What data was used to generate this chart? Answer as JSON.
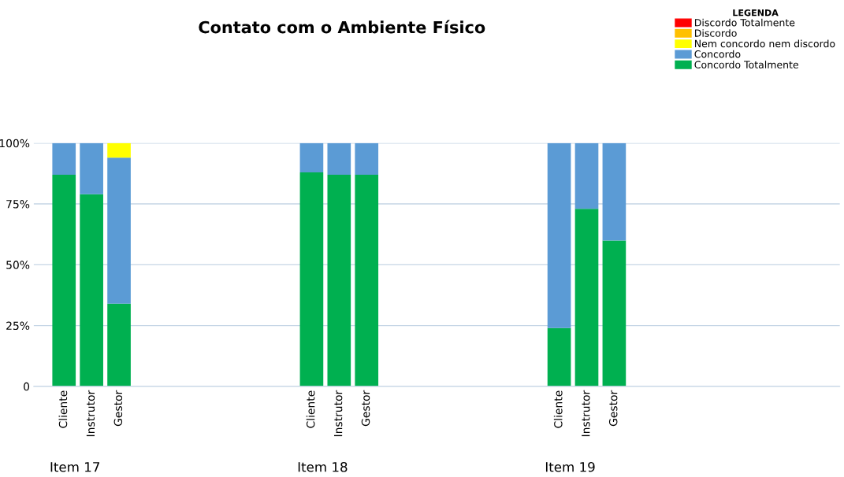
{
  "chart_data": {
    "type": "bar",
    "title": "Contato com o Ambiente Físico",
    "legend_title": "LEGENDA",
    "stacked": true,
    "legend": "top right",
    "grid": "y",
    "categories": [
      "Cliente",
      "Instrutor",
      "Gestor",
      null,
      null,
      null,
      null,
      null,
      null,
      "Cliente",
      "Instrutor",
      "Gestor",
      null,
      null,
      null,
      null,
      null,
      null,
      "Cliente",
      "Instrutor",
      "Gestor"
    ],
    "annotations": [
      "Item 17",
      "Item 18",
      "Item 19"
    ],
    "ylim": [
      0,
      100
    ],
    "yticks": [
      {
        "value": 0,
        "label": "0"
      },
      {
        "value": 25,
        "label": "25%"
      },
      {
        "value": 50,
        "label": "50%"
      },
      {
        "value": 75,
        "label": "75%"
      },
      {
        "value": 100,
        "label": "100%"
      }
    ],
    "series": [
      {
        "name": "Concordo Totalmente",
        "color": "#00b050",
        "values": [
          87,
          79,
          34,
          null,
          null,
          null,
          null,
          null,
          null,
          88,
          87,
          87,
          null,
          null,
          null,
          null,
          null,
          null,
          24,
          73,
          60
        ]
      },
      {
        "name": "Concordo",
        "color": "#5b9bd5",
        "values": [
          13,
          21,
          60,
          null,
          null,
          null,
          null,
          null,
          null,
          12,
          13,
          13,
          null,
          null,
          null,
          null,
          null,
          null,
          76,
          27,
          40
        ]
      },
      {
        "name": "Nem concordo nem discordo",
        "color": "#ffff00",
        "values": [
          0,
          0,
          6,
          null,
          null,
          null,
          null,
          null,
          null,
          0,
          0,
          0,
          null,
          null,
          null,
          null,
          null,
          null,
          0,
          0,
          0
        ]
      },
      {
        "name": "Discordo",
        "color": "#ffc000",
        "values": [
          0,
          0,
          0,
          null,
          null,
          null,
          null,
          null,
          null,
          0,
          0,
          0,
          null,
          null,
          null,
          null,
          null,
          null,
          0,
          0,
          0
        ]
      },
      {
        "name": "Discordo Totalmente",
        "color": "#ff0000",
        "values": [
          0,
          0,
          0,
          null,
          null,
          null,
          null,
          null,
          null,
          0,
          0,
          0,
          null,
          null,
          null,
          null,
          null,
          null,
          0,
          0,
          0
        ]
      }
    ]
  }
}
